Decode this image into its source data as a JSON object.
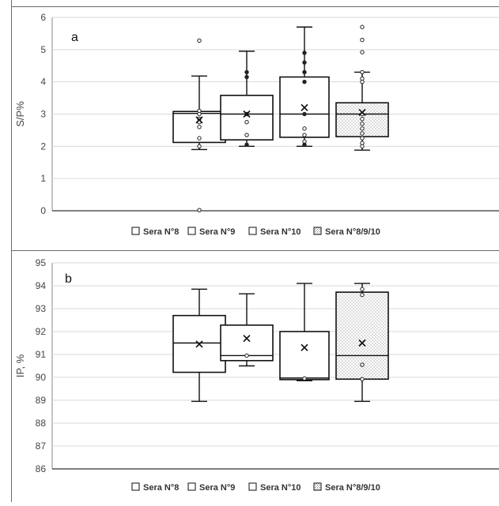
{
  "chart_data": [
    {
      "type": "boxplot",
      "panel_label": "a",
      "ylabel": "S/P%",
      "ylim": [
        0,
        6
      ],
      "yticks": [
        "0",
        "1",
        "2",
        "3",
        "4",
        "5",
        "6"
      ],
      "grid": true,
      "legend_position": "bottom",
      "series": [
        {
          "name": "Sera N°8",
          "pattern": "none",
          "min": 1.9,
          "q1": 2.12,
          "median": 3.02,
          "q3": 3.08,
          "max": 4.18,
          "mean": 2.82,
          "points": [
            5.28,
            3.1,
            3.0,
            2.85,
            2.75,
            2.6,
            2.25,
            2.0,
            0.02
          ]
        },
        {
          "name": "Sera N°9",
          "pattern": "none",
          "min": 2.0,
          "q1": 2.2,
          "median": 3.0,
          "q3": 3.58,
          "max": 4.95,
          "mean": 3.0,
          "points": [
            4.3,
            4.15,
            3.0,
            2.75,
            2.35,
            2.05
          ]
        },
        {
          "name": "Sera N°10",
          "pattern": "none",
          "min": 2.0,
          "q1": 2.28,
          "median": 3.0,
          "q3": 4.15,
          "max": 5.7,
          "mean": 3.2,
          "points": [
            4.9,
            4.6,
            4.3,
            4.0,
            3.0,
            2.55,
            2.35,
            2.15,
            2.05
          ]
        },
        {
          "name": "Sera N°8/9/10",
          "pattern": "dots",
          "min": 1.88,
          "q1": 2.3,
          "median": 3.0,
          "q3": 3.35,
          "max": 4.3,
          "mean": 3.05,
          "points": [
            5.7,
            5.3,
            4.92,
            4.3,
            4.1,
            4.0,
            3.0,
            2.85,
            2.7,
            2.55,
            2.4,
            2.25,
            2.1,
            2.0
          ]
        }
      ]
    },
    {
      "type": "boxplot",
      "panel_label": "b",
      "ylabel": "IP, %",
      "ylim": [
        86,
        95
      ],
      "yticks": [
        "86",
        "87",
        "88",
        "89",
        "90",
        "91",
        "92",
        "93",
        "94",
        "95"
      ],
      "grid": true,
      "legend_position": "bottom",
      "series": [
        {
          "name": "Sera N°8",
          "pattern": "none",
          "min": 88.95,
          "q1": 90.22,
          "median": 91.5,
          "q3": 92.7,
          "max": 93.85,
          "mean": 91.45,
          "points": []
        },
        {
          "name": "Sera N°9",
          "pattern": "none",
          "min": 90.5,
          "q1": 90.73,
          "median": 90.95,
          "q3": 92.28,
          "max": 93.65,
          "mean": 91.7,
          "points": [
            90.95
          ]
        },
        {
          "name": "Sera N°10",
          "pattern": "none",
          "min": 89.85,
          "q1": 89.9,
          "median": 89.97,
          "q3": 92.0,
          "max": 94.1,
          "mean": 91.3,
          "points": [
            89.95
          ]
        },
        {
          "name": "Sera N°8/9/10",
          "pattern": "dots",
          "min": 88.95,
          "q1": 89.92,
          "median": 90.95,
          "q3": 93.72,
          "max": 94.1,
          "mean": 91.5,
          "points": [
            93.85,
            93.6,
            90.55,
            89.92
          ]
        }
      ]
    }
  ],
  "colors": {
    "box_stroke": "#111111",
    "grid": "#d9d9d9",
    "axis": "#888888",
    "text": "#444444"
  }
}
